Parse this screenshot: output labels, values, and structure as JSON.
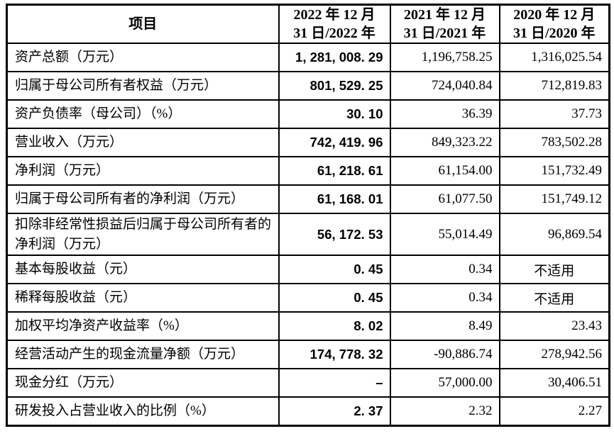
{
  "page": {
    "background": "#ffffff",
    "border_color": "#000000",
    "text_color": "#000000"
  },
  "table": {
    "header": {
      "item_label": "项目",
      "col_2022": "2022 年 12 月\n31 日/2022 年",
      "col_2021": "2021 年 12 月\n31 日/2021 年",
      "col_2020": "2020 年 12 月\n31 日/2020 年"
    },
    "rows": [
      {
        "item": "资产总额（万元）",
        "y2022": "1, 281, 008. 29",
        "y2021": "1,196,758.25",
        "y2020": "1,316,025.54"
      },
      {
        "item": "归属于母公司所有者权益（万元）",
        "y2022": "801, 529. 25",
        "y2021": "724,040.84",
        "y2020": "712,819.83"
      },
      {
        "item": "资产负债率（母公司）（%）",
        "y2022": "30. 10",
        "y2021": "36.39",
        "y2020": "37.73"
      },
      {
        "item": "营业收入（万元）",
        "y2022": "742, 419. 96",
        "y2021": "849,323.22",
        "y2020": "783,502.28"
      },
      {
        "item": "净利润（万元）",
        "y2022": "61, 218. 61",
        "y2021": "61,154.00",
        "y2020": "151,732.49"
      },
      {
        "item": "归属于母公司所有者的净利润（万元）",
        "y2022": "61, 168. 01",
        "y2021": "61,077.50",
        "y2020": "151,749.12"
      },
      {
        "item": "扣除非经常性损益后归属于母公司所有者的净利润（万元）",
        "y2022": "56, 172. 53",
        "y2021": "55,014.49",
        "y2020": "96,869.54"
      },
      {
        "item": "基本每股收益（元）",
        "y2022": "0. 45",
        "y2021": "0.34",
        "y2020": "不适用",
        "y2020_center": true
      },
      {
        "item": "稀释每股收益（元）",
        "y2022": "0. 45",
        "y2021": "0.34",
        "y2020": "不适用",
        "y2020_center": true
      },
      {
        "item": "加权平均净资产收益率（%）",
        "y2022": "8. 02",
        "y2021": "8.49",
        "y2020": "23.43"
      },
      {
        "item": "经营活动产生的现金流量净额（万元）",
        "y2022": "174, 778. 32",
        "y2021": "-90,886.74",
        "y2020": "278,942.56"
      },
      {
        "item": "现金分红（万元）",
        "y2022": "–",
        "y2021": "57,000.00",
        "y2020": "30,406.51"
      },
      {
        "item": "研发投入占营业收入的比例（%）",
        "y2022": "2. 37",
        "y2021": "2.32",
        "y2020": "2.27"
      }
    ]
  }
}
